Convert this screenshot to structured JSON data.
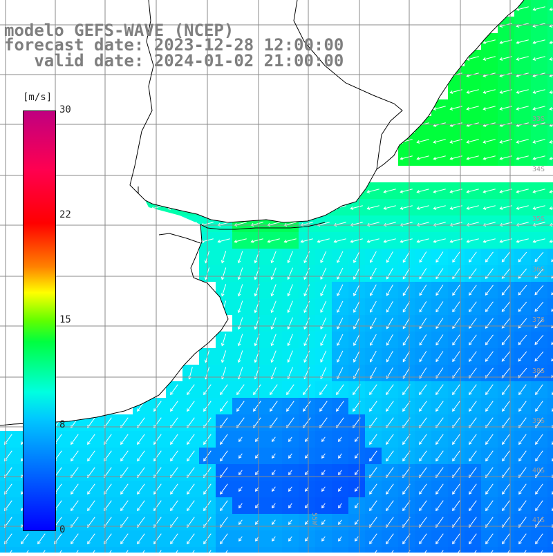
{
  "title": {
    "model": "modelo GEFS-WAVE (NCEP)",
    "forecast": "forecast date: 2023-12-28 12:00:00",
    "valid": "   valid date: 2024-01-02 21:00:00"
  },
  "colorbar": {
    "unit": "[m/s]",
    "ticks": [
      "30",
      "22",
      "15",
      "8",
      "0"
    ],
    "range": [
      0,
      30
    ],
    "colors": [
      "#0000ff",
      "#00c8ff",
      "#00ffe0",
      "#00ff40",
      "#ffff00",
      "#ff8000",
      "#ff0000",
      "#c00080"
    ]
  },
  "map": {
    "lat_labels": [
      "33S",
      "34S",
      "35S",
      "36S",
      "37S",
      "38S",
      "39S",
      "40S",
      "41S"
    ],
    "lon_labels": [
      "55W"
    ],
    "land_color": "#ffffff",
    "grid_color": "#8a8a8a",
    "coast_color": "#000000",
    "arrow_color": "#ffffff"
  }
}
